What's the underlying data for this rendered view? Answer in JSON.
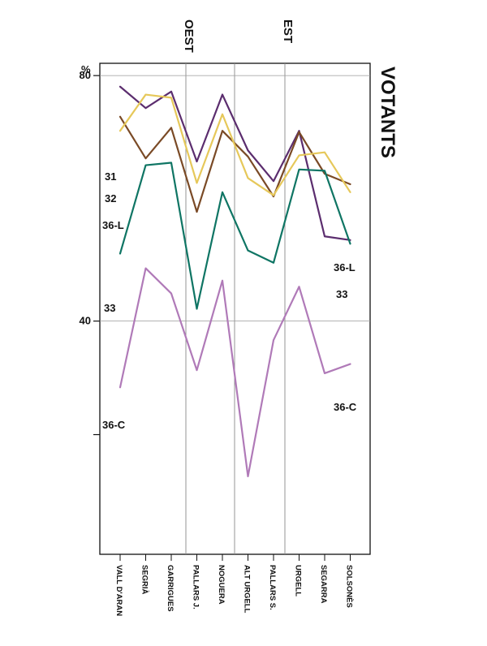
{
  "chart_data": {
    "type": "line",
    "title": "VOTANTS",
    "ylabel": "%",
    "ylim": [
      2,
      82
    ],
    "yticks": [
      80,
      40
    ],
    "categories": [
      "VALL D'ARAN",
      "SEGRIÀ",
      "GARRIGUES",
      "PALLARS J.",
      "NOGUERA",
      "ALT URGELL",
      "PALLARS S.",
      "URGELL",
      "SEGARRA",
      "SOLSONÈS"
    ],
    "regions": [
      {
        "label": "OEST"
      },
      {
        "label": "EST"
      }
    ],
    "grid": true,
    "series": [
      {
        "name": "31",
        "color": "#5b2d6e",
        "label_start": "31",
        "label_end": "",
        "values": [
          78.2,
          74.7,
          77.4,
          66.0,
          76.9,
          67.8,
          62.8,
          71.0,
          53.8,
          53.2
        ]
      },
      {
        "name": "32",
        "color": "#7a4a26",
        "label_start": "32",
        "label_end": "",
        "values": [
          73.3,
          66.5,
          71.5,
          57.8,
          71.0,
          66.8,
          60.3,
          70.8,
          64.0,
          62.3
        ]
      },
      {
        "name": "36-L",
        "color": "#e6c85a",
        "label_start": "36-L",
        "label_end": "36-L",
        "values": [
          71.0,
          76.9,
          76.4,
          62.5,
          73.7,
          63.3,
          60.5,
          67.0,
          67.5,
          61.0
        ]
      },
      {
        "name": "33",
        "color": "#0f7564",
        "label_start": "33",
        "label_end": "33",
        "values": [
          51.0,
          65.4,
          65.8,
          42.0,
          61.0,
          51.5,
          49.5,
          64.7,
          64.5,
          52.6
        ]
      },
      {
        "name": "36-C",
        "color": "#b07ab8",
        "label_start": "36-C",
        "label_end": "36-C",
        "values": [
          29.2,
          48.6,
          44.5,
          32.0,
          46.6,
          14.7,
          36.9,
          45.6,
          31.5,
          33.0
        ]
      }
    ]
  }
}
